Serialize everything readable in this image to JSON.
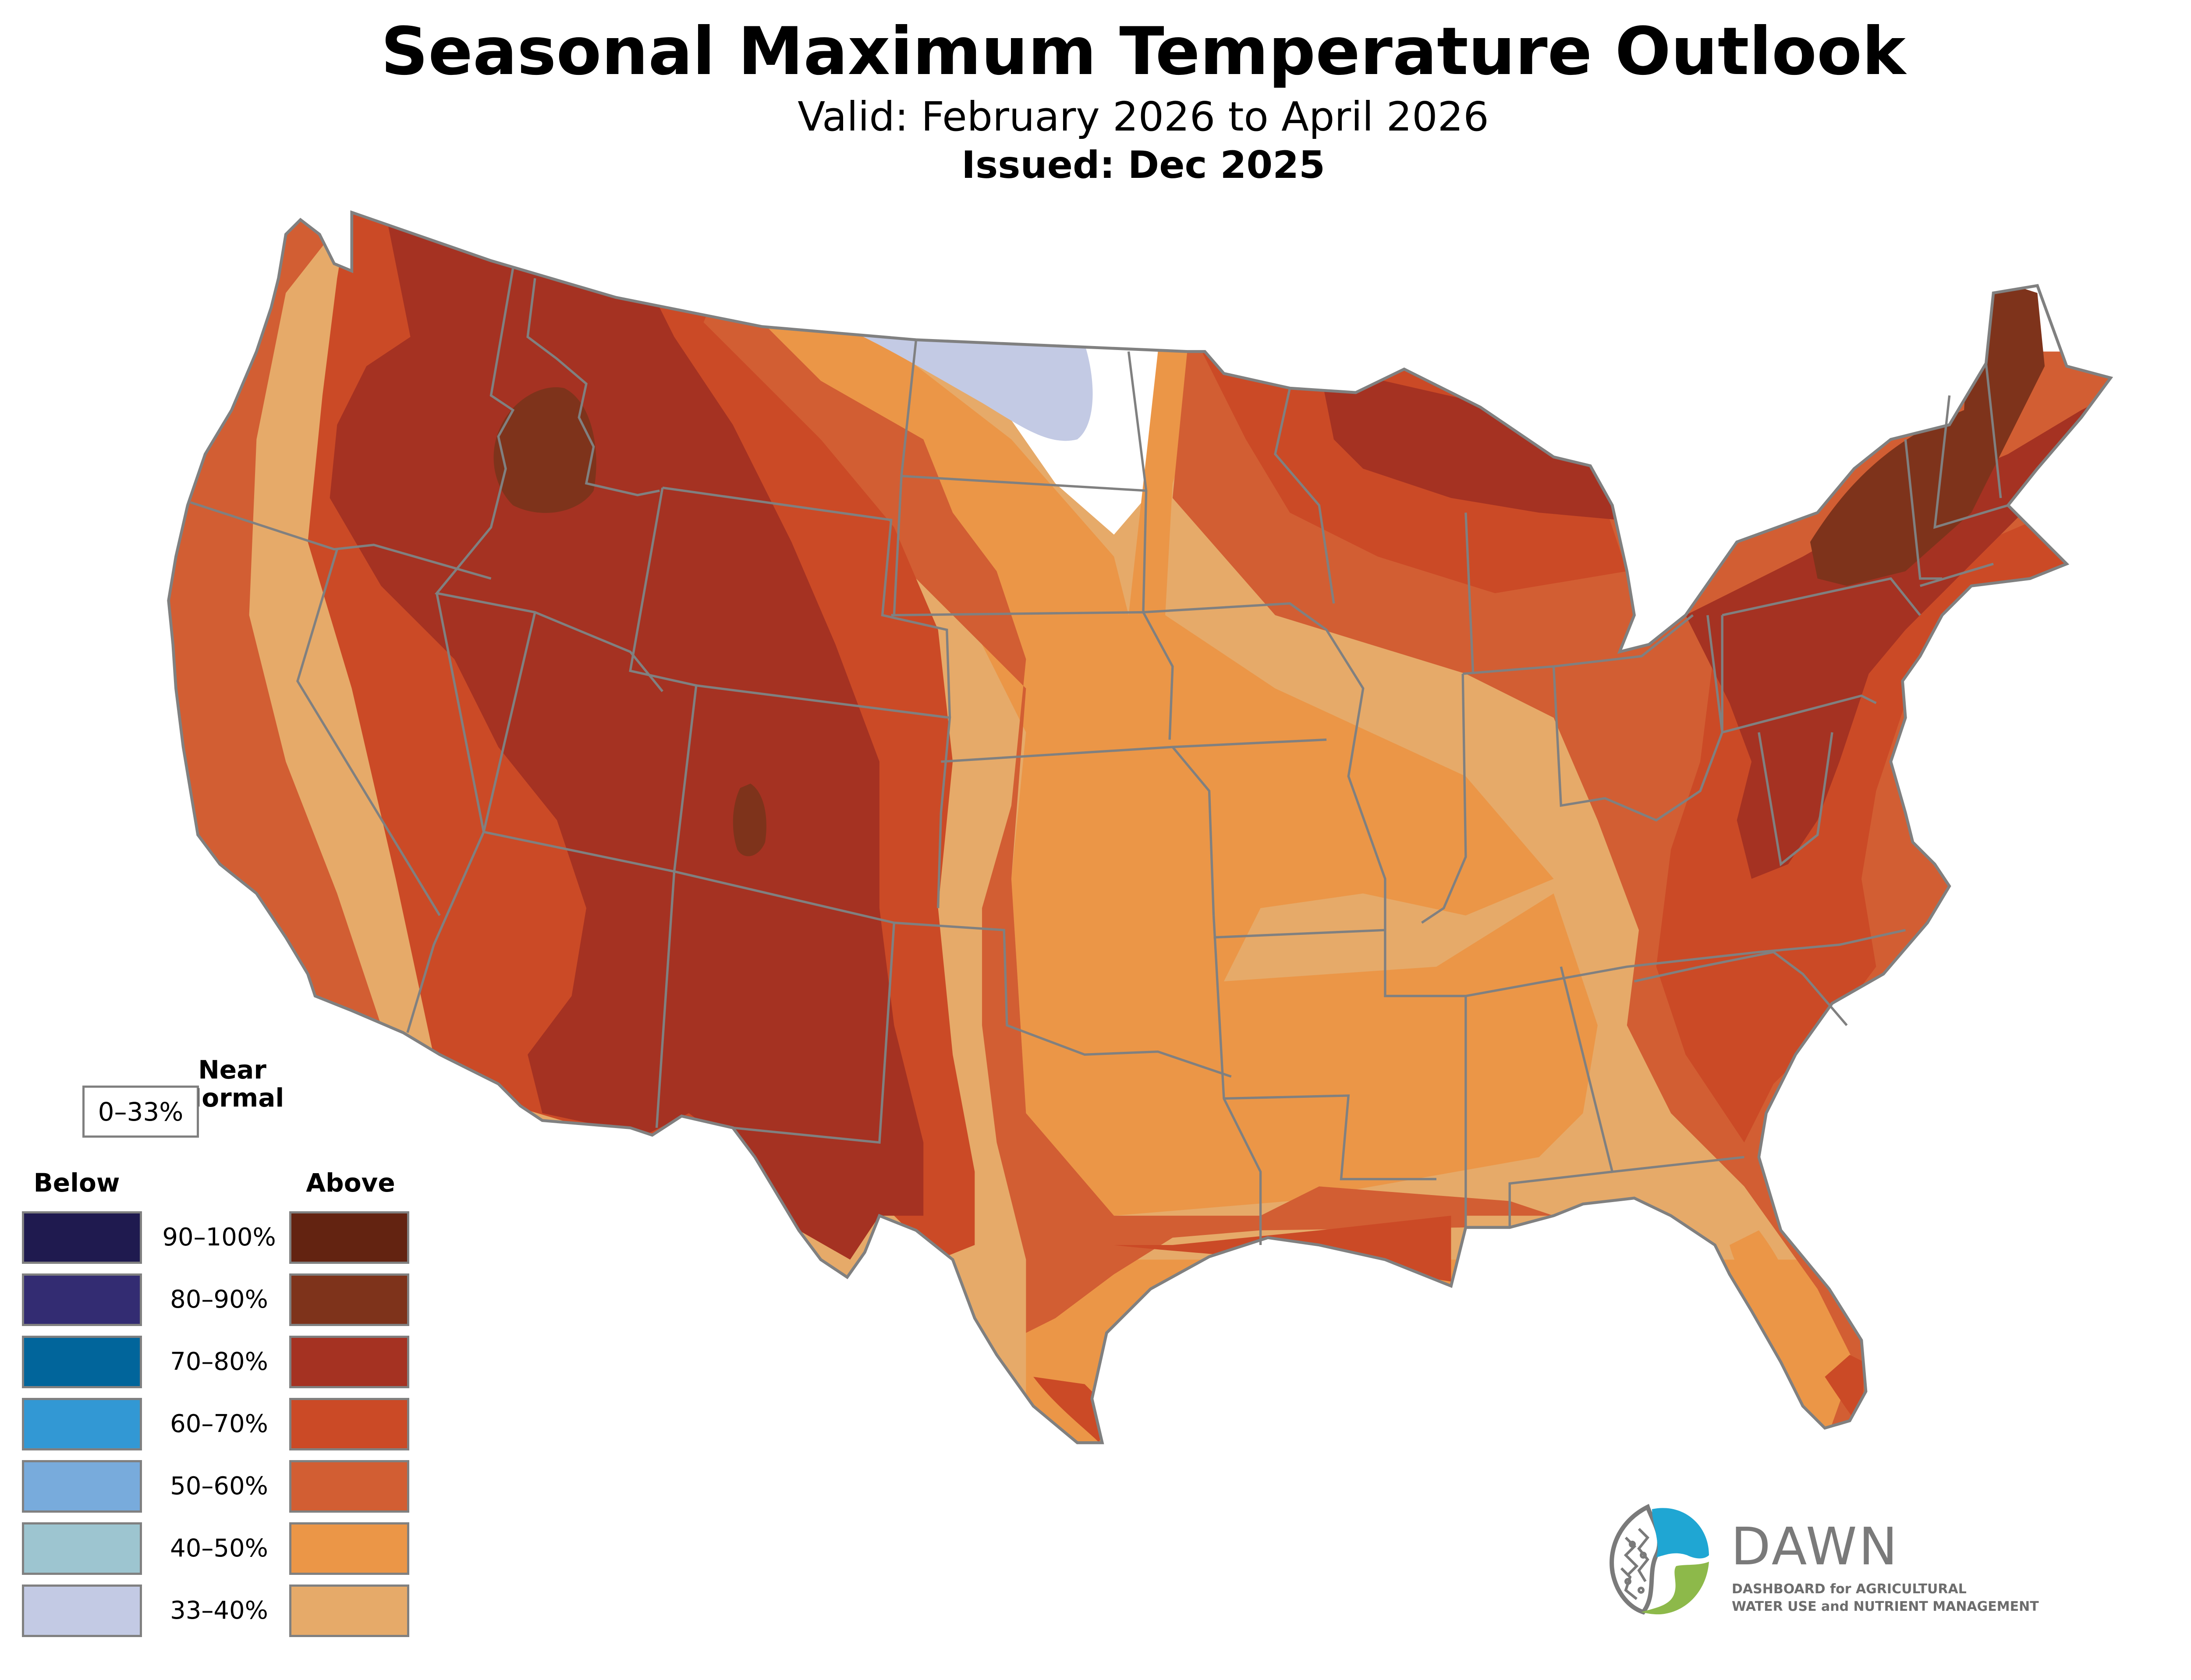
{
  "header": {
    "title": "Seasonal Maximum Temperature Outlook",
    "valid": "Valid: February 2026 to April 2026",
    "issued": "Issued: Dec 2025"
  },
  "map": {
    "region": "Contiguous United States",
    "categories_present": [
      "Above 33–40%",
      "Above 40–50%",
      "Above 50–60%",
      "Above 60–70%",
      "Above 70–80%",
      "Above 80–90%",
      "Near Normal 0–33%",
      "Below 33–40%"
    ],
    "colors": {
      "border": "#808080",
      "near_normal": "#ffffff"
    }
  },
  "legend": {
    "near_normal_heading_1": "Near",
    "near_normal_heading_2": "Normal",
    "near_normal_range": "0–33%",
    "below_heading": "Below",
    "above_heading": "Above",
    "rows": [
      {
        "label": "90–100%",
        "below_color": "#1f1a4f",
        "above_color": "#632311"
      },
      {
        "label": "80–90%",
        "below_color": "#332c72",
        "above_color": "#7e331b"
      },
      {
        "label": "70–80%",
        "below_color": "#01659b",
        "above_color": "#a53222"
      },
      {
        "label": "60–70%",
        "below_color": "#3298d4",
        "above_color": "#cb4a26"
      },
      {
        "label": "50–60%",
        "below_color": "#78abdc",
        "above_color": "#d25e33"
      },
      {
        "label": "40–50%",
        "below_color": "#9dc5d0",
        "above_color": "#eb9647"
      },
      {
        "label": "33–40%",
        "below_color": "#c3cae4",
        "above_color": "#e6aa69"
      }
    ]
  },
  "logo": {
    "name": "DAWN",
    "line1": "DASHBOARD for AGRICULTURAL",
    "line2": "WATER USE and NUTRIENT MANAGEMENT",
    "colors": {
      "blue": "#1fa6d3",
      "green": "#8db94a",
      "gray": "#7a7a7a"
    }
  }
}
